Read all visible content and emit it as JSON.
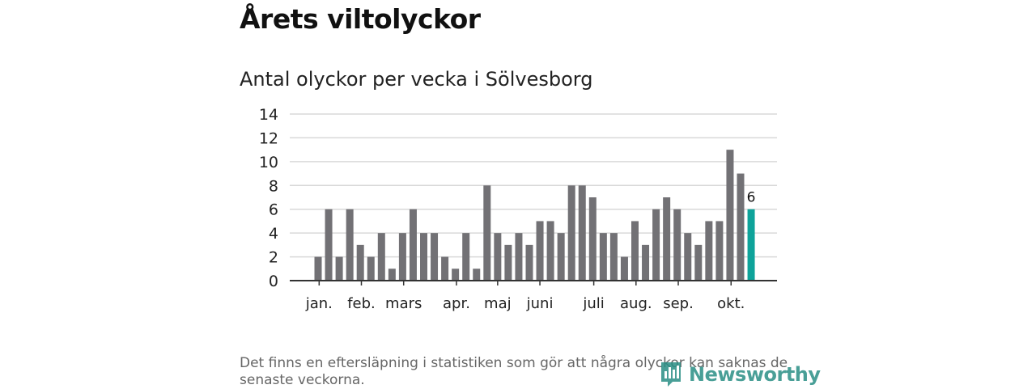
{
  "header": {
    "title": "Årets viltolyckor",
    "subtitle": "Antal olyckor per vecka i Sölvesborg"
  },
  "chart_data": {
    "type": "bar",
    "title": "Antal olyckor per vecka i Sölvesborg",
    "xlabel": "",
    "ylabel": "",
    "ylim": [
      0,
      14
    ],
    "yticks": [
      0,
      2,
      4,
      6,
      8,
      10,
      12,
      14
    ],
    "grid": true,
    "values": [
      2,
      6,
      2,
      6,
      3,
      2,
      4,
      1,
      4,
      6,
      4,
      4,
      2,
      1,
      4,
      1,
      8,
      4,
      3,
      4,
      3,
      5,
      5,
      4,
      8,
      8,
      7,
      4,
      4,
      2,
      5,
      3,
      6,
      7,
      6,
      4,
      3,
      5,
      5,
      11,
      9,
      6
    ],
    "month_labels": [
      {
        "label": "jan.",
        "week": 1.1
      },
      {
        "label": "feb.",
        "week": 5.1
      },
      {
        "label": "mars",
        "week": 9.1
      },
      {
        "label": "apr.",
        "week": 14.1
      },
      {
        "label": "maj",
        "week": 18.0
      },
      {
        "label": "juni",
        "week": 22.0
      },
      {
        "label": "juli",
        "week": 27.1
      },
      {
        "label": "aug.",
        "week": 31.1
      },
      {
        "label": "sep.",
        "week": 35.1
      },
      {
        "label": "okt.",
        "week": 40.1
      }
    ],
    "highlight_index": 41,
    "highlight_label": "6",
    "colors": {
      "bar": "#727175",
      "highlight": "#0ea39a",
      "grid": "#d9d9d9",
      "axis": "#333333"
    }
  },
  "footer": {
    "note": "Det finns en eftersläpning i statistiken som gör att några olyckor kan saknas de senaste veckorna.",
    "brand": "Newsworthy",
    "brand_color": "#2a8f85"
  }
}
